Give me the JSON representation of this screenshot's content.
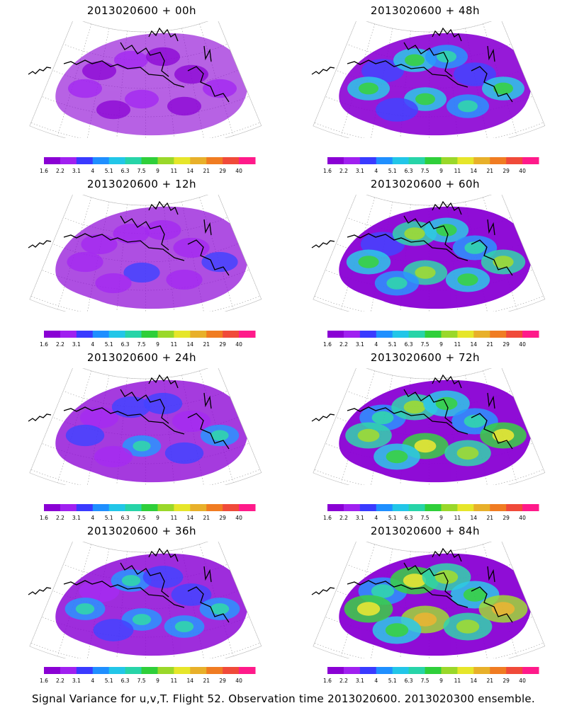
{
  "colorbar": {
    "labels": [
      "1.6",
      "2.2",
      "3.1",
      "4",
      "5.1",
      "6.3",
      "7.5",
      "9",
      "11",
      "14",
      "21",
      "29",
      "40"
    ],
    "colors": [
      "#8a00d4",
      "#a020f0",
      "#3a3aff",
      "#1f8fff",
      "#22c6e8",
      "#27d4a8",
      "#2fcf3a",
      "#9ad82a",
      "#e6e62a",
      "#e8b02a",
      "#f07c22",
      "#f04a3a",
      "#ff1a8a"
    ]
  },
  "panels": [
    {
      "title": "2013020600 + 00h",
      "level": 0.1
    },
    {
      "title": "2013020600 + 12h",
      "level": 0.18
    },
    {
      "title": "2013020600 + 24h",
      "level": 0.26
    },
    {
      "title": "2013020600 + 36h",
      "level": 0.32
    },
    {
      "title": "2013020600 + 48h",
      "level": 0.4
    },
    {
      "title": "2013020600 + 60h",
      "level": 0.46
    },
    {
      "title": "2013020600 + 72h",
      "level": 0.54
    },
    {
      "title": "2013020600 + 84h",
      "level": 0.62
    }
  ],
  "caption": "Signal Variance for u,v,T. Flight 52. Observation time 2013020600. 2013020300 ensemble."
}
